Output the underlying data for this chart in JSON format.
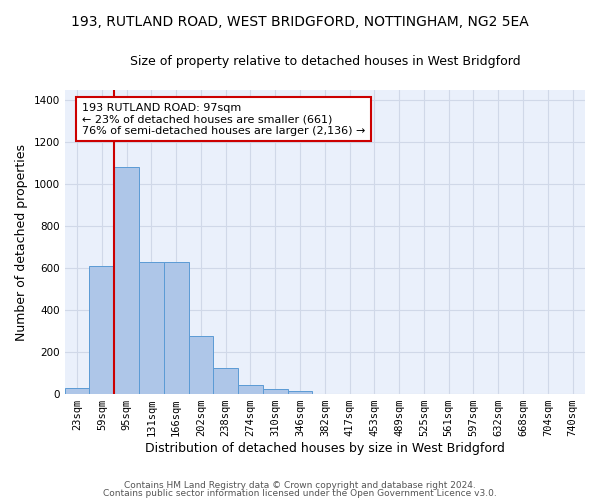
{
  "title": "193, RUTLAND ROAD, WEST BRIDGFORD, NOTTINGHAM, NG2 5EA",
  "subtitle": "Size of property relative to detached houses in West Bridgford",
  "xlabel": "Distribution of detached houses by size in West Bridgford",
  "ylabel": "Number of detached properties",
  "footnote1": "Contains HM Land Registry data © Crown copyright and database right 2024.",
  "footnote2": "Contains public sector information licensed under the Open Government Licence v3.0.",
  "bin_labels": [
    "23sqm",
    "59sqm",
    "95sqm",
    "131sqm",
    "166sqm",
    "202sqm",
    "238sqm",
    "274sqm",
    "310sqm",
    "346sqm",
    "382sqm",
    "417sqm",
    "453sqm",
    "489sqm",
    "525sqm",
    "561sqm",
    "597sqm",
    "632sqm",
    "668sqm",
    "704sqm",
    "740sqm"
  ],
  "bar_values": [
    30,
    610,
    1085,
    630,
    630,
    275,
    125,
    43,
    22,
    14,
    0,
    0,
    0,
    0,
    0,
    0,
    0,
    0,
    0,
    0,
    0
  ],
  "bar_color": "#aec6e8",
  "bar_edge_color": "#5b9bd5",
  "vline_x": 1.5,
  "vline_color": "#cc0000",
  "annotation_text": "193 RUTLAND ROAD: 97sqm\n← 23% of detached houses are smaller (661)\n76% of semi-detached houses are larger (2,136) →",
  "annotation_box_color": "#ffffff",
  "annotation_box_edge_color": "#cc0000",
  "ylim": [
    0,
    1450
  ],
  "yticks": [
    0,
    200,
    400,
    600,
    800,
    1000,
    1200,
    1400
  ],
  "bg_color": "#eaf0fb",
  "grid_color": "#d0d8e8",
  "title_fontsize": 10,
  "subtitle_fontsize": 9,
  "xlabel_fontsize": 9,
  "ylabel_fontsize": 9,
  "tick_fontsize": 7.5,
  "footnote_fontsize": 6.5
}
